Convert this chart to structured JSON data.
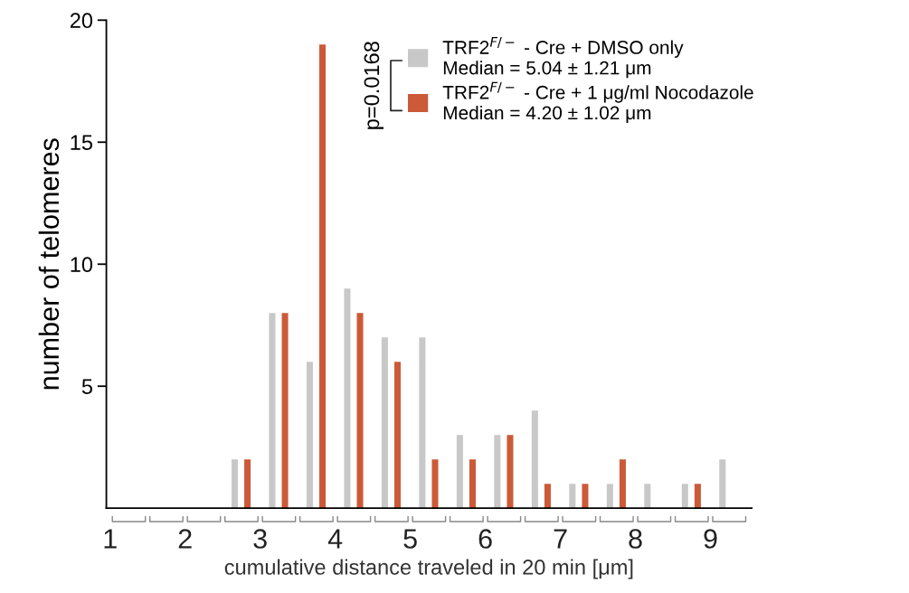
{
  "chart_data": {
    "type": "histogram",
    "xlabel": "cumulative distance traveled in 20 min [μm]",
    "ylabel": "number of telomeres",
    "bins": [
      1,
      1.5,
      2,
      2.5,
      3,
      3.5,
      4,
      4.5,
      5,
      5.5,
      6,
      6.5,
      7,
      7.5,
      8,
      8.5,
      9,
      9.5
    ],
    "series": [
      {
        "name": "TRF2$^{F/−}$ - Cre + DMSO only\nMedian = 5.04 ± 1.21 μm",
        "color": "#c8c8c8",
        "values": [
          0,
          0,
          0,
          2,
          8,
          6,
          9,
          7,
          7,
          3,
          3,
          4,
          1,
          1,
          1,
          1,
          2
        ]
      },
      {
        "name": "TRF2$^{F/−}$ - Cre + 1 μg/ml Nocodazole\nMedian = 4.20 ± 1.02 μm",
        "color": "#cc5a38",
        "values": [
          0,
          0,
          0,
          2,
          8,
          19,
          8,
          6,
          2,
          2,
          3,
          1,
          1,
          2,
          0,
          1,
          0
        ]
      }
    ],
    "xlim": [
      0.95,
      9.55
    ],
    "xticks": [
      1,
      2,
      3,
      4,
      5,
      6,
      7,
      8,
      9
    ],
    "ylim": [
      0,
      20
    ],
    "yticks": [
      5,
      10,
      15,
      20
    ],
    "annotations": [
      "p=0.0168"
    ],
    "legend": "top right",
    "grid": false
  }
}
